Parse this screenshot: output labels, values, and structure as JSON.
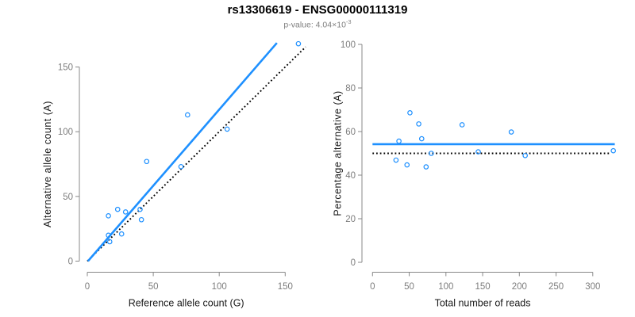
{
  "header": {
    "title": "rs13306619 - ENSG00000111319",
    "subtitle_prefix": "p-value: 4.04×10",
    "subtitle_exponent": "-3"
  },
  "colors": {
    "point_blue": "#1E90FF",
    "fit_line_blue": "#1E90FF",
    "reference_line_black": "#000000",
    "axis_gray": "#888888",
    "tick_label_gray": "#7D7D7D",
    "axis_label_black": "#1A1A1A",
    "subtitle_gray": "#7F7F7F",
    "background": "#FFFFFF"
  },
  "chart_data": [
    {
      "type": "scatter",
      "name": "allele-counts-scatter",
      "xlabel": "Reference allele count (G)",
      "ylabel": "Alternative allele count (A)",
      "xticks": [
        0,
        50,
        100,
        150
      ],
      "yticks": [
        0,
        50,
        100,
        150
      ],
      "xlim": [
        0,
        166
      ],
      "ylim": [
        0,
        169
      ],
      "marker": "open-circle",
      "points": [
        [
          16,
          35
        ],
        [
          23,
          40
        ],
        [
          29,
          38
        ],
        [
          40,
          40
        ],
        [
          41,
          32
        ],
        [
          16,
          20
        ],
        [
          26,
          21
        ],
        [
          17,
          15
        ],
        [
          45,
          77
        ],
        [
          71,
          73
        ],
        [
          76,
          113
        ],
        [
          106,
          102
        ],
        [
          160,
          168
        ]
      ],
      "lines": [
        {
          "name": "identity-line",
          "style": "dotted",
          "color": "#000000",
          "x1": 0,
          "y1": 0,
          "x2": 165.5,
          "y2": 165.5
        },
        {
          "name": "fit-line",
          "style": "solid",
          "color": "#1E90FF",
          "x1": 0.5,
          "y1": 0,
          "x2": 143.7,
          "y2": 168.6
        }
      ]
    },
    {
      "type": "scatter",
      "name": "percentage-reads-scatter",
      "xlabel": "Total number of reads",
      "ylabel": "Percentage alternative (A)",
      "xticks": [
        0,
        50,
        100,
        150,
        200,
        250,
        300
      ],
      "yticks": [
        0,
        20,
        40,
        60,
        80,
        100
      ],
      "xlim": [
        0,
        332
      ],
      "ylim": [
        0,
        100
      ],
      "marker": "open-circle",
      "points": [
        [
          32,
          46.9
        ],
        [
          36,
          55.6
        ],
        [
          47,
          44.7
        ],
        [
          51,
          68.6
        ],
        [
          63,
          63.5
        ],
        [
          67,
          56.7
        ],
        [
          73,
          43.8
        ],
        [
          80,
          50
        ],
        [
          122,
          63.1
        ],
        [
          144,
          50.7
        ],
        [
          189,
          59.8
        ],
        [
          208,
          49
        ],
        [
          328,
          51.2
        ]
      ],
      "lines": [
        {
          "name": "expected-50-line",
          "style": "dotted",
          "color": "#000000",
          "x1": 0,
          "y1": 50,
          "x2": 323,
          "y2": 50
        },
        {
          "name": "mean-percentage-line",
          "style": "solid",
          "color": "#1E90FF",
          "x1": 0,
          "y1": 54.2,
          "x2": 330,
          "y2": 54.2
        }
      ]
    }
  ]
}
